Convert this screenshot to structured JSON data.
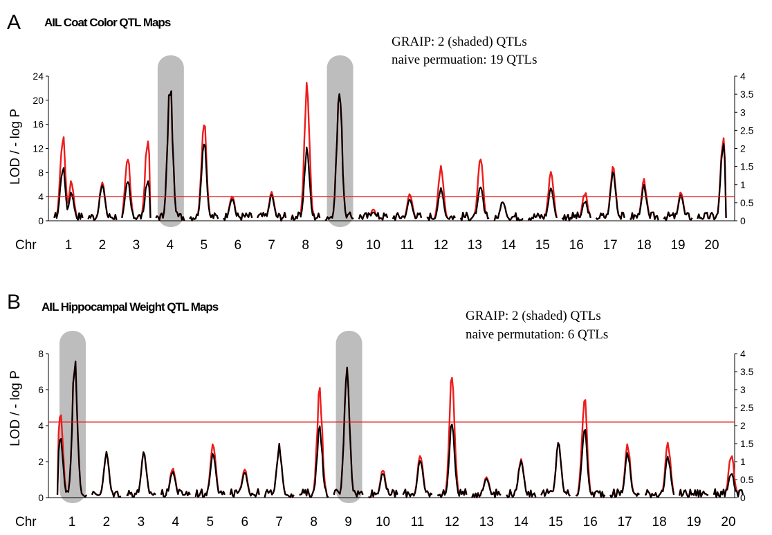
{
  "chart_data": [
    {
      "type": "line",
      "panel_label": "A",
      "title": "AIL Coat Color QTL Maps",
      "annotation": [
        "GRAIP:  2 (shaded) QTLs",
        "naive permuation:  19 QTLs"
      ],
      "ylabel": "LOD / - log P",
      "xlabel_prefix": "Chr",
      "chromosomes": [
        "1",
        "2",
        "3",
        "4",
        "5",
        "6",
        "7",
        "8",
        "9",
        "10",
        "11",
        "12",
        "13",
        "14",
        "15",
        "16",
        "17",
        "18",
        "19",
        "20"
      ],
      "left_axis": {
        "ylim": [
          0,
          24
        ],
        "ticks": [
          "0",
          "4",
          "8",
          "12",
          "16",
          "20",
          "24"
        ]
      },
      "right_axis": {
        "ylim": [
          0,
          4
        ],
        "ticks": [
          "0",
          "0.5",
          "1",
          "1.5",
          "2",
          "2.5",
          "3",
          "3.5",
          "4"
        ]
      },
      "threshold": 4,
      "shaded_chromosomes": [
        "4",
        "9"
      ],
      "series": [
        {
          "color": "#ee1c1c",
          "peaks": [
            {
              "chr": "1",
              "pos": 0.3,
              "value": 15
            },
            {
              "chr": "1",
              "pos": 0.6,
              "value": 7
            },
            {
              "chr": "2",
              "pos": 0.5,
              "value": 7
            },
            {
              "chr": "3",
              "pos": 0.2,
              "value": 11
            },
            {
              "chr": "3",
              "pos": 0.9,
              "value": 14
            },
            {
              "chr": "4",
              "pos": 0.5,
              "value": 24
            },
            {
              "chr": "5",
              "pos": 0.5,
              "value": 17.5
            },
            {
              "chr": "6",
              "pos": 0.3,
              "value": 4.5
            },
            {
              "chr": "7",
              "pos": 0.5,
              "value": 5
            },
            {
              "chr": "8",
              "pos": 0.55,
              "value": 23.5
            },
            {
              "chr": "9",
              "pos": 0.5,
              "value": 24
            },
            {
              "chr": "10",
              "pos": 0.5,
              "value": 2
            },
            {
              "chr": "11",
              "pos": 0.6,
              "value": 5
            },
            {
              "chr": "12",
              "pos": 0.5,
              "value": 10
            },
            {
              "chr": "13",
              "pos": 0.7,
              "value": 11
            },
            {
              "chr": "14",
              "pos": 0.3,
              "value": 3.5
            },
            {
              "chr": "15",
              "pos": 0.8,
              "value": 9
            },
            {
              "chr": "16",
              "pos": 0.8,
              "value": 5
            },
            {
              "chr": "17",
              "pos": 0.6,
              "value": 10
            },
            {
              "chr": "18",
              "pos": 0.5,
              "value": 7
            },
            {
              "chr": "19",
              "pos": 0.6,
              "value": 5
            },
            {
              "chr": "20",
              "pos": 0.9,
              "value": 14.5
            }
          ]
        },
        {
          "color": "#000000",
          "peaks": [
            {
              "chr": "1",
              "pos": 0.3,
              "value": 9.5
            },
            {
              "chr": "1",
              "pos": 0.6,
              "value": 5
            },
            {
              "chr": "2",
              "pos": 0.5,
              "value": 6.5
            },
            {
              "chr": "3",
              "pos": 0.2,
              "value": 7
            },
            {
              "chr": "3",
              "pos": 0.9,
              "value": 7
            },
            {
              "chr": "4",
              "pos": 0.5,
              "value": 24
            },
            {
              "chr": "5",
              "pos": 0.5,
              "value": 14
            },
            {
              "chr": "6",
              "pos": 0.3,
              "value": 4
            },
            {
              "chr": "7",
              "pos": 0.5,
              "value": 4.5
            },
            {
              "chr": "8",
              "pos": 0.55,
              "value": 12.5
            },
            {
              "chr": "9",
              "pos": 0.5,
              "value": 24
            },
            {
              "chr": "10",
              "pos": 0.5,
              "value": 1.5
            },
            {
              "chr": "11",
              "pos": 0.6,
              "value": 4
            },
            {
              "chr": "12",
              "pos": 0.5,
              "value": 6
            },
            {
              "chr": "13",
              "pos": 0.7,
              "value": 6
            },
            {
              "chr": "14",
              "pos": 0.3,
              "value": 3.5
            },
            {
              "chr": "15",
              "pos": 0.8,
              "value": 6
            },
            {
              "chr": "16",
              "pos": 0.8,
              "value": 3.5
            },
            {
              "chr": "17",
              "pos": 0.6,
              "value": 9
            },
            {
              "chr": "18",
              "pos": 0.5,
              "value": 6
            },
            {
              "chr": "19",
              "pos": 0.6,
              "value": 4.5
            },
            {
              "chr": "20",
              "pos": 0.9,
              "value": 13.5
            }
          ]
        }
      ]
    },
    {
      "type": "line",
      "panel_label": "B",
      "title": "AIL Hippocampal Weight QTL Maps",
      "annotation": [
        "GRAIP: 2 (shaded) QTLs",
        "naive permutation: 6 QTLs"
      ],
      "ylabel": "LOD / - log P",
      "xlabel_prefix": "Chr",
      "chromosomes": [
        "1",
        "2",
        "3",
        "4",
        "5",
        "6",
        "7",
        "8",
        "9",
        "10",
        "11",
        "12",
        "13",
        "14",
        "15",
        "16",
        "17",
        "18",
        "19",
        "20"
      ],
      "left_axis": {
        "ylim": [
          0,
          8
        ],
        "ticks": [
          "0",
          "2",
          "4",
          "6",
          "8"
        ]
      },
      "right_axis": {
        "ylim": [
          0,
          4
        ],
        "ticks": [
          "0",
          "0.5",
          "1",
          "1.5",
          "2",
          "2.5",
          "3",
          "3.5",
          "4"
        ]
      },
      "threshold": 4.2,
      "shaded_chromosomes": [
        "1",
        "9"
      ],
      "series": [
        {
          "color": "#ee1c1c",
          "peaks": [
            {
              "chr": "1",
              "pos": 0.6,
              "value": 8
            },
            {
              "chr": "1",
              "pos": 0.1,
              "value": 4.9
            },
            {
              "chr": "2",
              "pos": 0.5,
              "value": 2.6
            },
            {
              "chr": "3",
              "pos": 0.6,
              "value": 2.6
            },
            {
              "chr": "4",
              "pos": 0.4,
              "value": 1.8
            },
            {
              "chr": "5",
              "pos": 0.6,
              "value": 3.4
            },
            {
              "chr": "6",
              "pos": 0.5,
              "value": 1.8
            },
            {
              "chr": "7",
              "pos": 0.5,
              "value": 3
            },
            {
              "chr": "8",
              "pos": 0.7,
              "value": 6.3
            },
            {
              "chr": "9",
              "pos": 0.45,
              "value": 8
            },
            {
              "chr": "10",
              "pos": 0.5,
              "value": 1.6
            },
            {
              "chr": "11",
              "pos": 0.6,
              "value": 2.5
            },
            {
              "chr": "12",
              "pos": 0.5,
              "value": 7.2
            },
            {
              "chr": "13",
              "pos": 0.5,
              "value": 1.3
            },
            {
              "chr": "14",
              "pos": 0.5,
              "value": 2.4
            },
            {
              "chr": "15",
              "pos": 0.6,
              "value": 3.2
            },
            {
              "chr": "16",
              "pos": 0.3,
              "value": 5.9
            },
            {
              "chr": "17",
              "pos": 0.6,
              "value": 3.1
            },
            {
              "chr": "18",
              "pos": 0.8,
              "value": 3.2
            },
            {
              "chr": "20",
              "pos": 0.6,
              "value": 2.6
            }
          ]
        },
        {
          "color": "#000000",
          "peaks": [
            {
              "chr": "1",
              "pos": 0.6,
              "value": 8
            },
            {
              "chr": "1",
              "pos": 0.1,
              "value": 3.5
            },
            {
              "chr": "2",
              "pos": 0.5,
              "value": 2.6
            },
            {
              "chr": "3",
              "pos": 0.6,
              "value": 2.6
            },
            {
              "chr": "4",
              "pos": 0.4,
              "value": 1.6
            },
            {
              "chr": "5",
              "pos": 0.6,
              "value": 2.8
            },
            {
              "chr": "6",
              "pos": 0.5,
              "value": 1.6
            },
            {
              "chr": "7",
              "pos": 0.5,
              "value": 3
            },
            {
              "chr": "8",
              "pos": 0.7,
              "value": 4.1
            },
            {
              "chr": "9",
              "pos": 0.45,
              "value": 8
            },
            {
              "chr": "10",
              "pos": 0.5,
              "value": 1.4
            },
            {
              "chr": "11",
              "pos": 0.6,
              "value": 2.2
            },
            {
              "chr": "12",
              "pos": 0.5,
              "value": 4.4
            },
            {
              "chr": "13",
              "pos": 0.5,
              "value": 1.2
            },
            {
              "chr": "14",
              "pos": 0.5,
              "value": 2.3
            },
            {
              "chr": "15",
              "pos": 0.6,
              "value": 3.2
            },
            {
              "chr": "16",
              "pos": 0.3,
              "value": 4.1
            },
            {
              "chr": "17",
              "pos": 0.6,
              "value": 2.6
            },
            {
              "chr": "18",
              "pos": 0.8,
              "value": 2.4
            },
            {
              "chr": "20",
              "pos": 0.6,
              "value": 1.5
            }
          ]
        }
      ]
    }
  ]
}
